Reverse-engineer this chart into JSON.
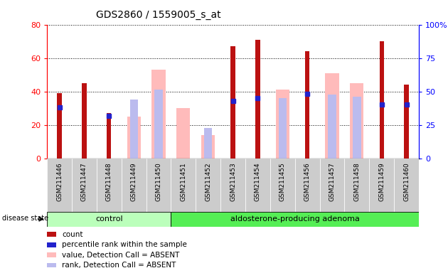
{
  "title": "GDS2860 / 1559005_s_at",
  "samples": [
    "GSM211446",
    "GSM211447",
    "GSM211448",
    "GSM211449",
    "GSM211450",
    "GSM211451",
    "GSM211452",
    "GSM211453",
    "GSM211454",
    "GSM211455",
    "GSM211456",
    "GSM211457",
    "GSM211458",
    "GSM211459",
    "GSM211460"
  ],
  "count": [
    39,
    45,
    27,
    0,
    0,
    0,
    0,
    67,
    71,
    0,
    64,
    0,
    0,
    70,
    44
  ],
  "percentile": [
    38,
    0,
    32,
    0,
    0,
    0,
    0,
    43,
    45,
    0,
    48,
    0,
    0,
    40,
    40
  ],
  "absent_value": [
    0,
    0,
    0,
    25,
    53,
    30,
    14,
    0,
    0,
    41,
    0,
    51,
    45,
    0,
    0
  ],
  "absent_rank": [
    0,
    0,
    0,
    35,
    41,
    0,
    18,
    0,
    0,
    36,
    0,
    38,
    37,
    0,
    0
  ],
  "control_count": 5,
  "adenoma_count": 10,
  "ylim_left": [
    0,
    80
  ],
  "ylim_right": [
    0,
    100
  ],
  "yticks_left": [
    0,
    20,
    40,
    60,
    80
  ],
  "yticks_right": [
    0,
    25,
    50,
    75,
    100
  ],
  "color_count": "#bb1111",
  "color_percentile": "#2222cc",
  "color_absent_value": "#ffbbbb",
  "color_absent_rank": "#bbbbee",
  "color_control_bg": "#bbffbb",
  "color_adenoma_bg": "#55ee55",
  "color_sample_bg": "#cccccc",
  "label_count": "count",
  "label_percentile": "percentile rank within the sample",
  "label_absent_value": "value, Detection Call = ABSENT",
  "label_absent_rank": "rank, Detection Call = ABSENT",
  "figsize": [
    6.3,
    3.84
  ],
  "dpi": 100
}
